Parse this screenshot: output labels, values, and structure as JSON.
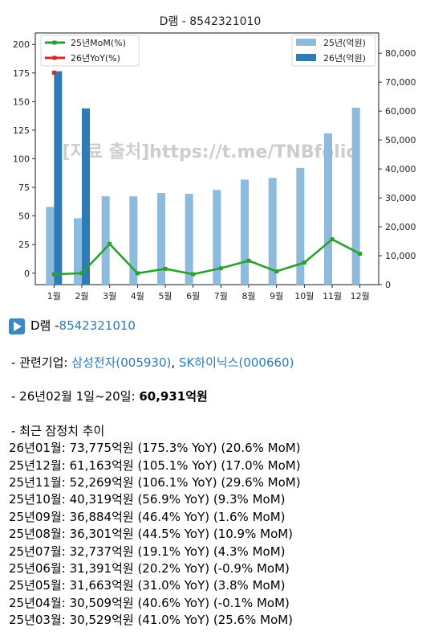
{
  "chart_data": {
    "title": "D램 - 8542321010",
    "type": "bar+line",
    "categories": [
      "1월",
      "2월",
      "3월",
      "4월",
      "5월",
      "6월",
      "7월",
      "8월",
      "9월",
      "10월",
      "11월",
      "12월"
    ],
    "bar_series": [
      {
        "name": "25년(억원)",
        "color": "#8dbbde",
        "values": [
          26850,
          22950,
          30529,
          30509,
          31663,
          31391,
          32737,
          36301,
          36884,
          40319,
          52269,
          61163
        ]
      },
      {
        "name": "26년(억원)",
        "color": "#2e7bb5",
        "values": [
          73775,
          60931,
          null,
          null,
          null,
          null,
          null,
          null,
          null,
          null,
          null,
          null
        ]
      }
    ],
    "line_series": [
      {
        "name": "25년MoM(%)",
        "color": "#2ca02c",
        "values": [
          -1,
          0,
          25.6,
          -0.1,
          3.8,
          -0.9,
          4.3,
          10.9,
          1.6,
          9.3,
          29.6,
          17.0
        ]
      },
      {
        "name": "26년YoY(%)",
        "color": "#d62728",
        "values": [
          175.3
        ]
      }
    ],
    "left_axis": {
      "ylim": [
        -10,
        210
      ],
      "ticks": [
        0,
        25,
        50,
        75,
        100,
        125,
        150,
        175,
        200
      ]
    },
    "right_axis": {
      "ylim": [
        0,
        87000
      ],
      "ticks": [
        "0",
        "10,000",
        "20,000",
        "30,000",
        "40,000",
        "50,000",
        "60,000",
        "70,000",
        "80,000"
      ]
    },
    "legend_left_position": "top-left",
    "legend_right_position": "top-right",
    "watermark": "[자료 출처]https://t.me/TNBfolio",
    "grid": false
  },
  "post": {
    "icon": "play-button-icon",
    "head_label": "D램 - ",
    "head_code": "8542321010",
    "related_label": "- 관련기업: ",
    "related_company_1": "삼성전자(005930)",
    "related_sep": ", ",
    "related_company_2": "SK하이닉스(000660)",
    "current_label": "- 26년02월 1일~20일: ",
    "current_value": "60,931억원",
    "trend_header": "- 최근 잠정치 추이",
    "records": [
      "26년01월: 73,775억원 (175.3% YoY) (20.6% MoM)",
      "25년12월: 61,163억원 (105.1% YoY) (17.0% MoM)",
      "25년11월: 52,269억원 (106.1% YoY) (29.6% MoM)",
      "25년10월: 40,319억원 (56.9% YoY) (9.3% MoM)",
      "25년09월: 36,884억원 (46.4% YoY) (1.6% MoM)",
      "25년08월: 36,301억원 (44.5% YoY) (10.9% MoM)",
      "25년07월: 32,737억원 (19.1% YoY) (4.3% MoM)",
      "25년06월: 31,391억원 (20.2% YoY) (-0.9% MoM)",
      "25년05월: 31,663억원 (31.0% YoY) (3.8% MoM)",
      "25년04월: 30,509억원 (40.6% YoY) (-0.1% MoM)",
      "25년03월: 30,529억원 (41.0% YoY) (25.6% MoM)"
    ]
  }
}
